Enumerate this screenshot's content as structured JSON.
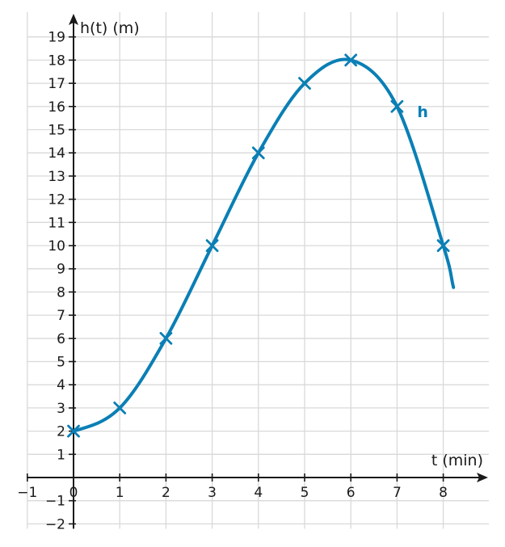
{
  "chart_data": {
    "type": "line",
    "title": "",
    "xlabel": "t (min)",
    "ylabel": "h(t) (m)",
    "xlim": [
      -1,
      8.9
    ],
    "ylim": [
      -2,
      19.5
    ],
    "x_ticks": [
      -1,
      0,
      1,
      2,
      3,
      4,
      5,
      6,
      7,
      8
    ],
    "x_tick_labels": [
      "−1",
      "0",
      "1",
      "2",
      "3",
      "4",
      "5",
      "6",
      "7",
      "8"
    ],
    "y_ticks": [
      -2,
      -1,
      1,
      2,
      3,
      4,
      5,
      6,
      7,
      8,
      9,
      10,
      11,
      12,
      13,
      14,
      15,
      16,
      17,
      18,
      19
    ],
    "y_tick_labels": [
      "−2",
      "−1",
      "1",
      "2",
      "3",
      "4",
      "5",
      "6",
      "7",
      "8",
      "9",
      "10",
      "11",
      "12",
      "13",
      "14",
      "15",
      "16",
      "17",
      "18",
      "19"
    ],
    "grid": true,
    "colors": {
      "series": "#0a7fb5",
      "axis": "#1a1a1a",
      "grid": "#d9d9d9"
    },
    "series": [
      {
        "name": "h",
        "points": [
          [
            0,
            2
          ],
          [
            1,
            3
          ],
          [
            2,
            6
          ],
          [
            3,
            10
          ],
          [
            4,
            14
          ],
          [
            5,
            17
          ],
          [
            6,
            18
          ],
          [
            7,
            16
          ],
          [
            8,
            10
          ]
        ],
        "curve_end": [
          8.22,
          8.2
        ],
        "marker": "x"
      }
    ]
  }
}
